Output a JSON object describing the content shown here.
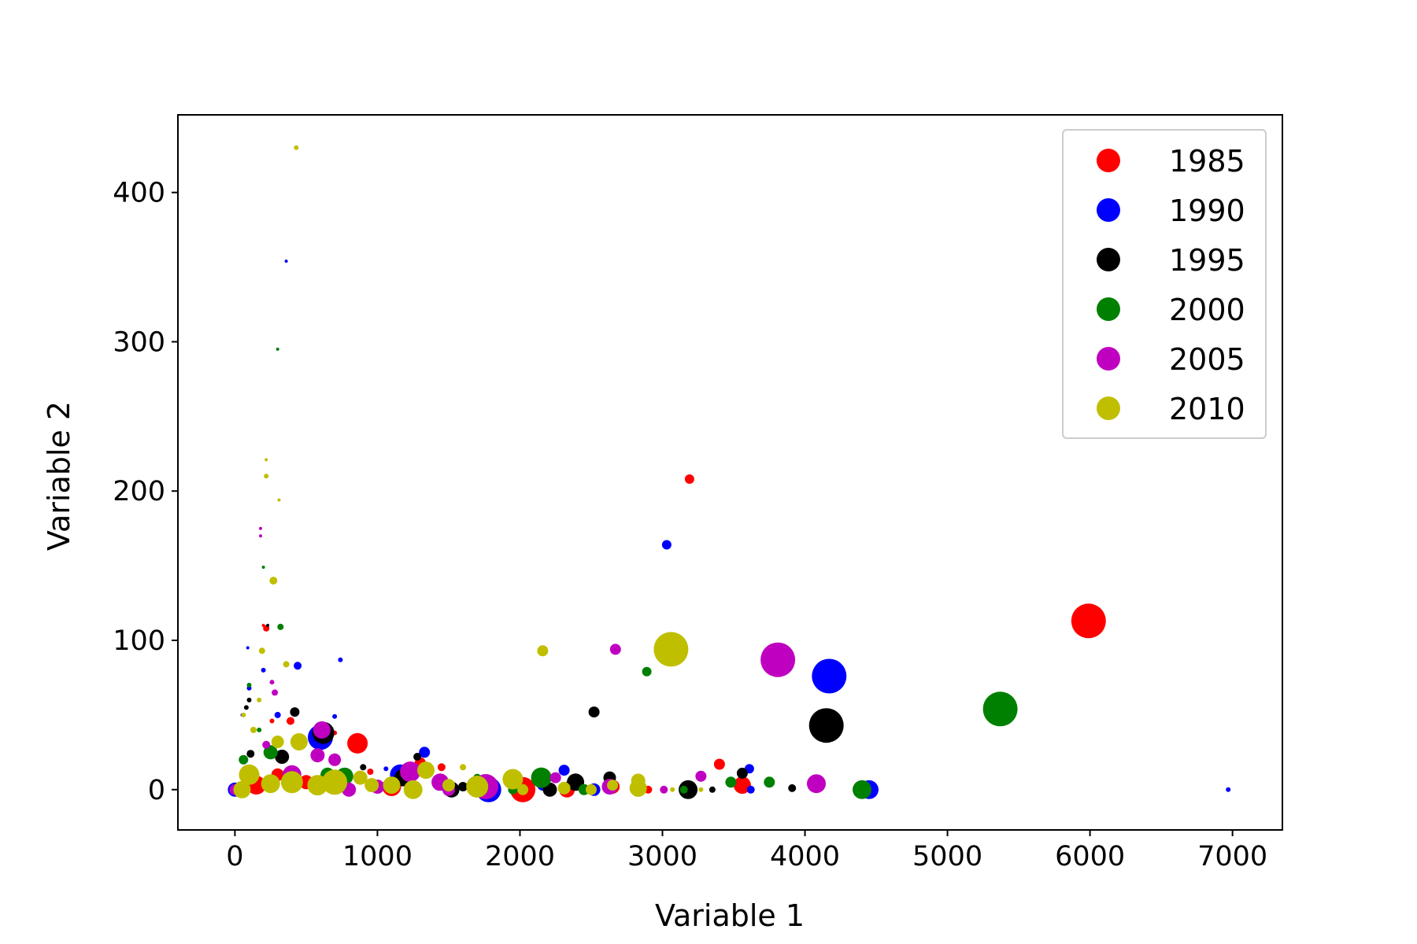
{
  "chart_data": {
    "type": "scatter",
    "title": "",
    "xlabel": "Variable 1",
    "ylabel": "Variable 2",
    "xlim": [
      -400,
      7350
    ],
    "ylim": [
      -27,
      452
    ],
    "xticks": [
      0,
      1000,
      2000,
      3000,
      4000,
      5000,
      6000,
      7000
    ],
    "yticks": [
      0,
      100,
      200,
      300,
      400
    ],
    "grid": false,
    "legend_position": "top-right",
    "series": [
      {
        "name": "1985",
        "color": "#ff0000",
        "points": [
          [
            5990,
            113,
            22
          ],
          [
            3190,
            208,
            6
          ],
          [
            2020,
            0,
            16
          ],
          [
            860,
            31,
            13
          ],
          [
            3560,
            3,
            11
          ],
          [
            3400,
            17,
            7
          ],
          [
            220,
            108,
            4
          ],
          [
            200,
            110,
            2
          ],
          [
            390,
            46,
            5
          ],
          [
            950,
            12,
            4
          ],
          [
            1450,
            15,
            5
          ],
          [
            1300,
            18,
            7
          ],
          [
            1100,
            2,
            12
          ],
          [
            2330,
            0,
            10
          ],
          [
            2650,
            2,
            9
          ],
          [
            260,
            46,
            3
          ],
          [
            580,
            35,
            4
          ],
          [
            150,
            3,
            12
          ],
          [
            300,
            10,
            8
          ],
          [
            1800,
            0,
            6
          ],
          [
            500,
            5,
            9
          ],
          [
            2900,
            0,
            5
          ],
          [
            3200,
            0,
            5
          ],
          [
            700,
            38,
            3
          ]
        ]
      },
      {
        "name": "1990",
        "color": "#0000ff",
        "points": [
          [
            4170,
            76,
            22
          ],
          [
            3030,
            164,
            6
          ],
          [
            4450,
            0,
            12
          ],
          [
            6970,
            0,
            3
          ],
          [
            360,
            354,
            2
          ],
          [
            440,
            83,
            5
          ],
          [
            740,
            87,
            3
          ],
          [
            1330,
            25,
            7
          ],
          [
            3610,
            14,
            6
          ],
          [
            3620,
            0,
            5
          ],
          [
            2310,
            13,
            7
          ],
          [
            1780,
            0,
            16
          ],
          [
            1160,
            10,
            13
          ],
          [
            600,
            35,
            16
          ],
          [
            100,
            68,
            3
          ],
          [
            90,
            95,
            2
          ],
          [
            200,
            80,
            3
          ],
          [
            50,
            50,
            2
          ],
          [
            300,
            50,
            4
          ],
          [
            2520,
            0,
            8
          ],
          [
            1500,
            0,
            8
          ],
          [
            2160,
            3,
            7
          ],
          [
            1060,
            14,
            3
          ],
          [
            700,
            49,
            3
          ],
          [
            0,
            0,
            9
          ]
        ]
      },
      {
        "name": "1995",
        "color": "#000000",
        "points": [
          [
            4150,
            43,
            22
          ],
          [
            3180,
            0,
            12
          ],
          [
            2520,
            52,
            7
          ],
          [
            3560,
            11,
            7
          ],
          [
            3910,
            1,
            5
          ],
          [
            2630,
            8,
            8
          ],
          [
            2390,
            5,
            11
          ],
          [
            2210,
            0,
            9
          ],
          [
            620,
            38,
            14
          ],
          [
            330,
            22,
            9
          ],
          [
            420,
            52,
            6
          ],
          [
            1280,
            22,
            5
          ],
          [
            1180,
            8,
            11
          ],
          [
            1520,
            0,
            10
          ],
          [
            2830,
            1,
            7
          ],
          [
            3350,
            0,
            4
          ],
          [
            80,
            55,
            3
          ],
          [
            100,
            60,
            3
          ],
          [
            230,
            110,
            2
          ],
          [
            110,
            24,
            5
          ],
          [
            900,
            15,
            4
          ],
          [
            1600,
            2,
            6
          ]
        ]
      },
      {
        "name": "2000",
        "color": "#008000",
        "points": [
          [
            5370,
            54,
            22
          ],
          [
            2890,
            79,
            6
          ],
          [
            4400,
            0,
            12
          ],
          [
            3750,
            5,
            7
          ],
          [
            3480,
            5,
            7
          ],
          [
            2150,
            8,
            13
          ],
          [
            2450,
            0,
            7
          ],
          [
            320,
            109,
            4
          ],
          [
            200,
            149,
            2
          ],
          [
            300,
            295,
            2
          ],
          [
            650,
            10,
            9
          ],
          [
            1430,
            3,
            7
          ],
          [
            770,
            9,
            11
          ],
          [
            250,
            25,
            9
          ],
          [
            170,
            40,
            3
          ],
          [
            100,
            70,
            3
          ],
          [
            1250,
            2,
            8
          ],
          [
            3150,
            0,
            5
          ],
          [
            1950,
            0,
            6
          ],
          [
            2850,
            0,
            5
          ],
          [
            400,
            5,
            8
          ],
          [
            60,
            20,
            6
          ],
          [
            1700,
            8,
            5
          ]
        ]
      },
      {
        "name": "2005",
        "color": "#c000c0",
        "points": [
          [
            3810,
            87,
            22
          ],
          [
            2670,
            94,
            7
          ],
          [
            4080,
            4,
            12
          ],
          [
            3270,
            9,
            7
          ],
          [
            3010,
            0,
            5
          ],
          [
            1760,
            2,
            16
          ],
          [
            1230,
            12,
            13
          ],
          [
            610,
            40,
            11
          ],
          [
            580,
            23,
            9
          ],
          [
            700,
            20,
            8
          ],
          [
            180,
            175,
            2
          ],
          [
            180,
            170,
            2
          ],
          [
            260,
            72,
            3
          ],
          [
            280,
            65,
            4
          ],
          [
            1440,
            5,
            11
          ],
          [
            1000,
            2,
            9
          ],
          [
            2250,
            8,
            7
          ],
          [
            2630,
            2,
            10
          ],
          [
            800,
            0,
            9
          ],
          [
            400,
            10,
            12
          ],
          [
            220,
            30,
            5
          ],
          [
            0,
            0,
            7
          ],
          [
            1500,
            0,
            8
          ]
        ]
      },
      {
        "name": "2010",
        "color": "#bfbf00",
        "points": [
          [
            3060,
            94,
            22
          ],
          [
            2160,
            93,
            7
          ],
          [
            430,
            430,
            3
          ],
          [
            220,
            210,
            3
          ],
          [
            220,
            221,
            2
          ],
          [
            310,
            194,
            2
          ],
          [
            270,
            140,
            5
          ],
          [
            190,
            93,
            4
          ],
          [
            360,
            84,
            4
          ],
          [
            450,
            32,
            11
          ],
          [
            300,
            32,
            8
          ],
          [
            1340,
            13,
            11
          ],
          [
            1950,
            7,
            13
          ],
          [
            1700,
            2,
            14
          ],
          [
            1250,
            0,
            12
          ],
          [
            2830,
            6,
            9
          ],
          [
            2830,
            1,
            11
          ],
          [
            2650,
            3,
            7
          ],
          [
            2310,
            1,
            8
          ],
          [
            2500,
            0,
            7
          ],
          [
            2020,
            0,
            7
          ],
          [
            1100,
            3,
            11
          ],
          [
            960,
            3,
            9
          ],
          [
            700,
            5,
            16
          ],
          [
            580,
            3,
            13
          ],
          [
            400,
            5,
            14
          ],
          [
            250,
            4,
            12
          ],
          [
            100,
            10,
            13
          ],
          [
            50,
            0,
            11
          ],
          [
            170,
            60,
            3
          ],
          [
            130,
            40,
            4
          ],
          [
            60,
            50,
            3
          ],
          [
            3070,
            0,
            3
          ],
          [
            3270,
            0,
            3
          ],
          [
            1600,
            15,
            4
          ],
          [
            880,
            8,
            9
          ],
          [
            1500,
            3,
            8
          ]
        ]
      }
    ]
  }
}
